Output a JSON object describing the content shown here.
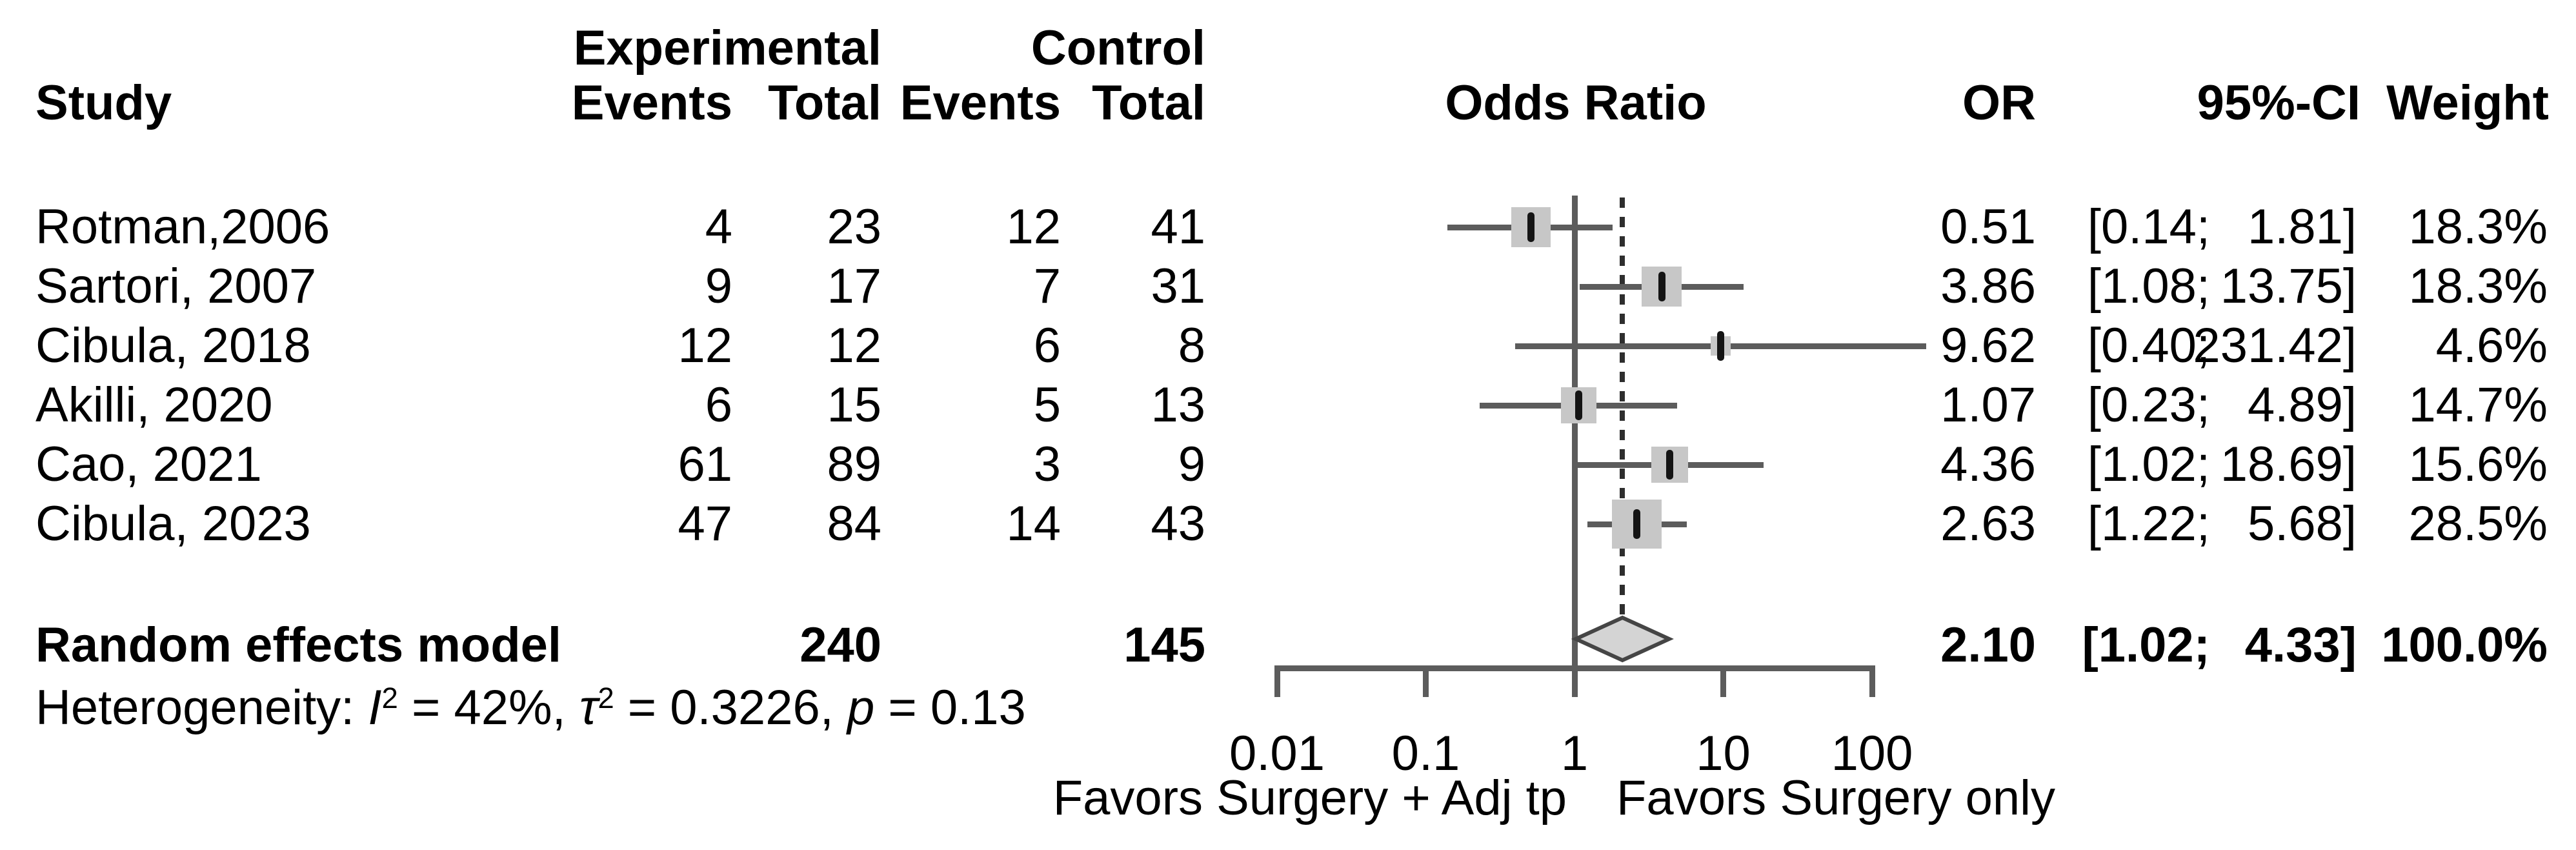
{
  "headers": {
    "study": "Study",
    "experimental_group": "Experimental",
    "control_group": "Control",
    "exp_events": "Events",
    "exp_total": "Total",
    "ctrl_events": "Events",
    "ctrl_total": "Total",
    "plot_title": "Odds Ratio",
    "or": "OR",
    "ci": "95%-CI",
    "weight": "Weight"
  },
  "chart_data": {
    "type": "forest",
    "x_scale": "log10",
    "xlim": [
      0.01,
      100
    ],
    "x_tick_labels": [
      "0.01",
      "0.1",
      "1",
      "10",
      "100"
    ],
    "x_tick_values": [
      0.01,
      0.1,
      1,
      10,
      100
    ],
    "reference_line": 1,
    "pooled_line": 2.1,
    "axis_left_label": "Favors Surgery + Adj tp",
    "axis_right_label": "Favors Surgery only",
    "studies": [
      {
        "name": "Rotman,2006",
        "exp_events": "4",
        "exp_total": "23",
        "ctrl_events": "12",
        "ctrl_total": "41",
        "or": 0.51,
        "lo": 0.14,
        "hi": 1.81,
        "or_text": "0.51",
        "lo_text": "0.14",
        "hi_text": "1.81",
        "weight": 18.3,
        "weight_text": "18.3%"
      },
      {
        "name": "Sartori, 2007",
        "exp_events": "9",
        "exp_total": "17",
        "ctrl_events": "7",
        "ctrl_total": "31",
        "or": 3.86,
        "lo": 1.08,
        "hi": 13.75,
        "or_text": "3.86",
        "lo_text": "1.08",
        "hi_text": "13.75",
        "weight": 18.3,
        "weight_text": "18.3%"
      },
      {
        "name": "Cibula, 2018",
        "exp_events": "12",
        "exp_total": "12",
        "ctrl_events": "6",
        "ctrl_total": "8",
        "or": 9.62,
        "lo": 0.4,
        "hi": 231.42,
        "or_text": "9.62",
        "lo_text": "0.40",
        "hi_text": "231.42",
        "weight": 4.6,
        "weight_text": "4.6%"
      },
      {
        "name": "Akilli, 2020",
        "exp_events": "6",
        "exp_total": "15",
        "ctrl_events": "5",
        "ctrl_total": "13",
        "or": 1.07,
        "lo": 0.23,
        "hi": 4.89,
        "or_text": "1.07",
        "lo_text": "0.23",
        "hi_text": "4.89",
        "weight": 14.7,
        "weight_text": "14.7%"
      },
      {
        "name": "Cao, 2021",
        "exp_events": "61",
        "exp_total": "89",
        "ctrl_events": "3",
        "ctrl_total": "9",
        "or": 4.36,
        "lo": 1.02,
        "hi": 18.69,
        "or_text": "4.36",
        "lo_text": "1.02",
        "hi_text": "18.69",
        "weight": 15.6,
        "weight_text": "15.6%"
      },
      {
        "name": "Cibula, 2023",
        "exp_events": "47",
        "exp_total": "84",
        "ctrl_events": "14",
        "ctrl_total": "43",
        "or": 2.63,
        "lo": 1.22,
        "hi": 5.68,
        "or_text": "2.63",
        "lo_text": "1.22",
        "hi_text": "5.68",
        "weight": 28.5,
        "weight_text": "28.5%"
      }
    ],
    "summary": {
      "label": "Random effects model",
      "exp_total": "240",
      "ctrl_total": "145",
      "or": 2.1,
      "lo": 1.02,
      "hi": 4.33,
      "or_text": "2.10",
      "lo_text": "1.02",
      "hi_text": "4.33",
      "weight_text": "100.0%"
    }
  },
  "heterogeneity": {
    "lead": "Heterogeneity: ",
    "i_sym": "I",
    "i_sup": "2",
    "i_rest": " = 42%, ",
    "tau_sym": "τ",
    "tau_sup": "2",
    "tau_rest": " = 0.3226, ",
    "p_sym": "p",
    "p_rest": " = 0.13"
  },
  "colors": {
    "text": "#000000",
    "line_gray": "#5c5c5c",
    "square_fill": "#c7c7c7",
    "point_black": "#141414",
    "diamond_fill": "#d4d4d4",
    "diamond_stroke": "#454545",
    "dashed_line": "#2e2e2e",
    "background": "#ffffff"
  }
}
